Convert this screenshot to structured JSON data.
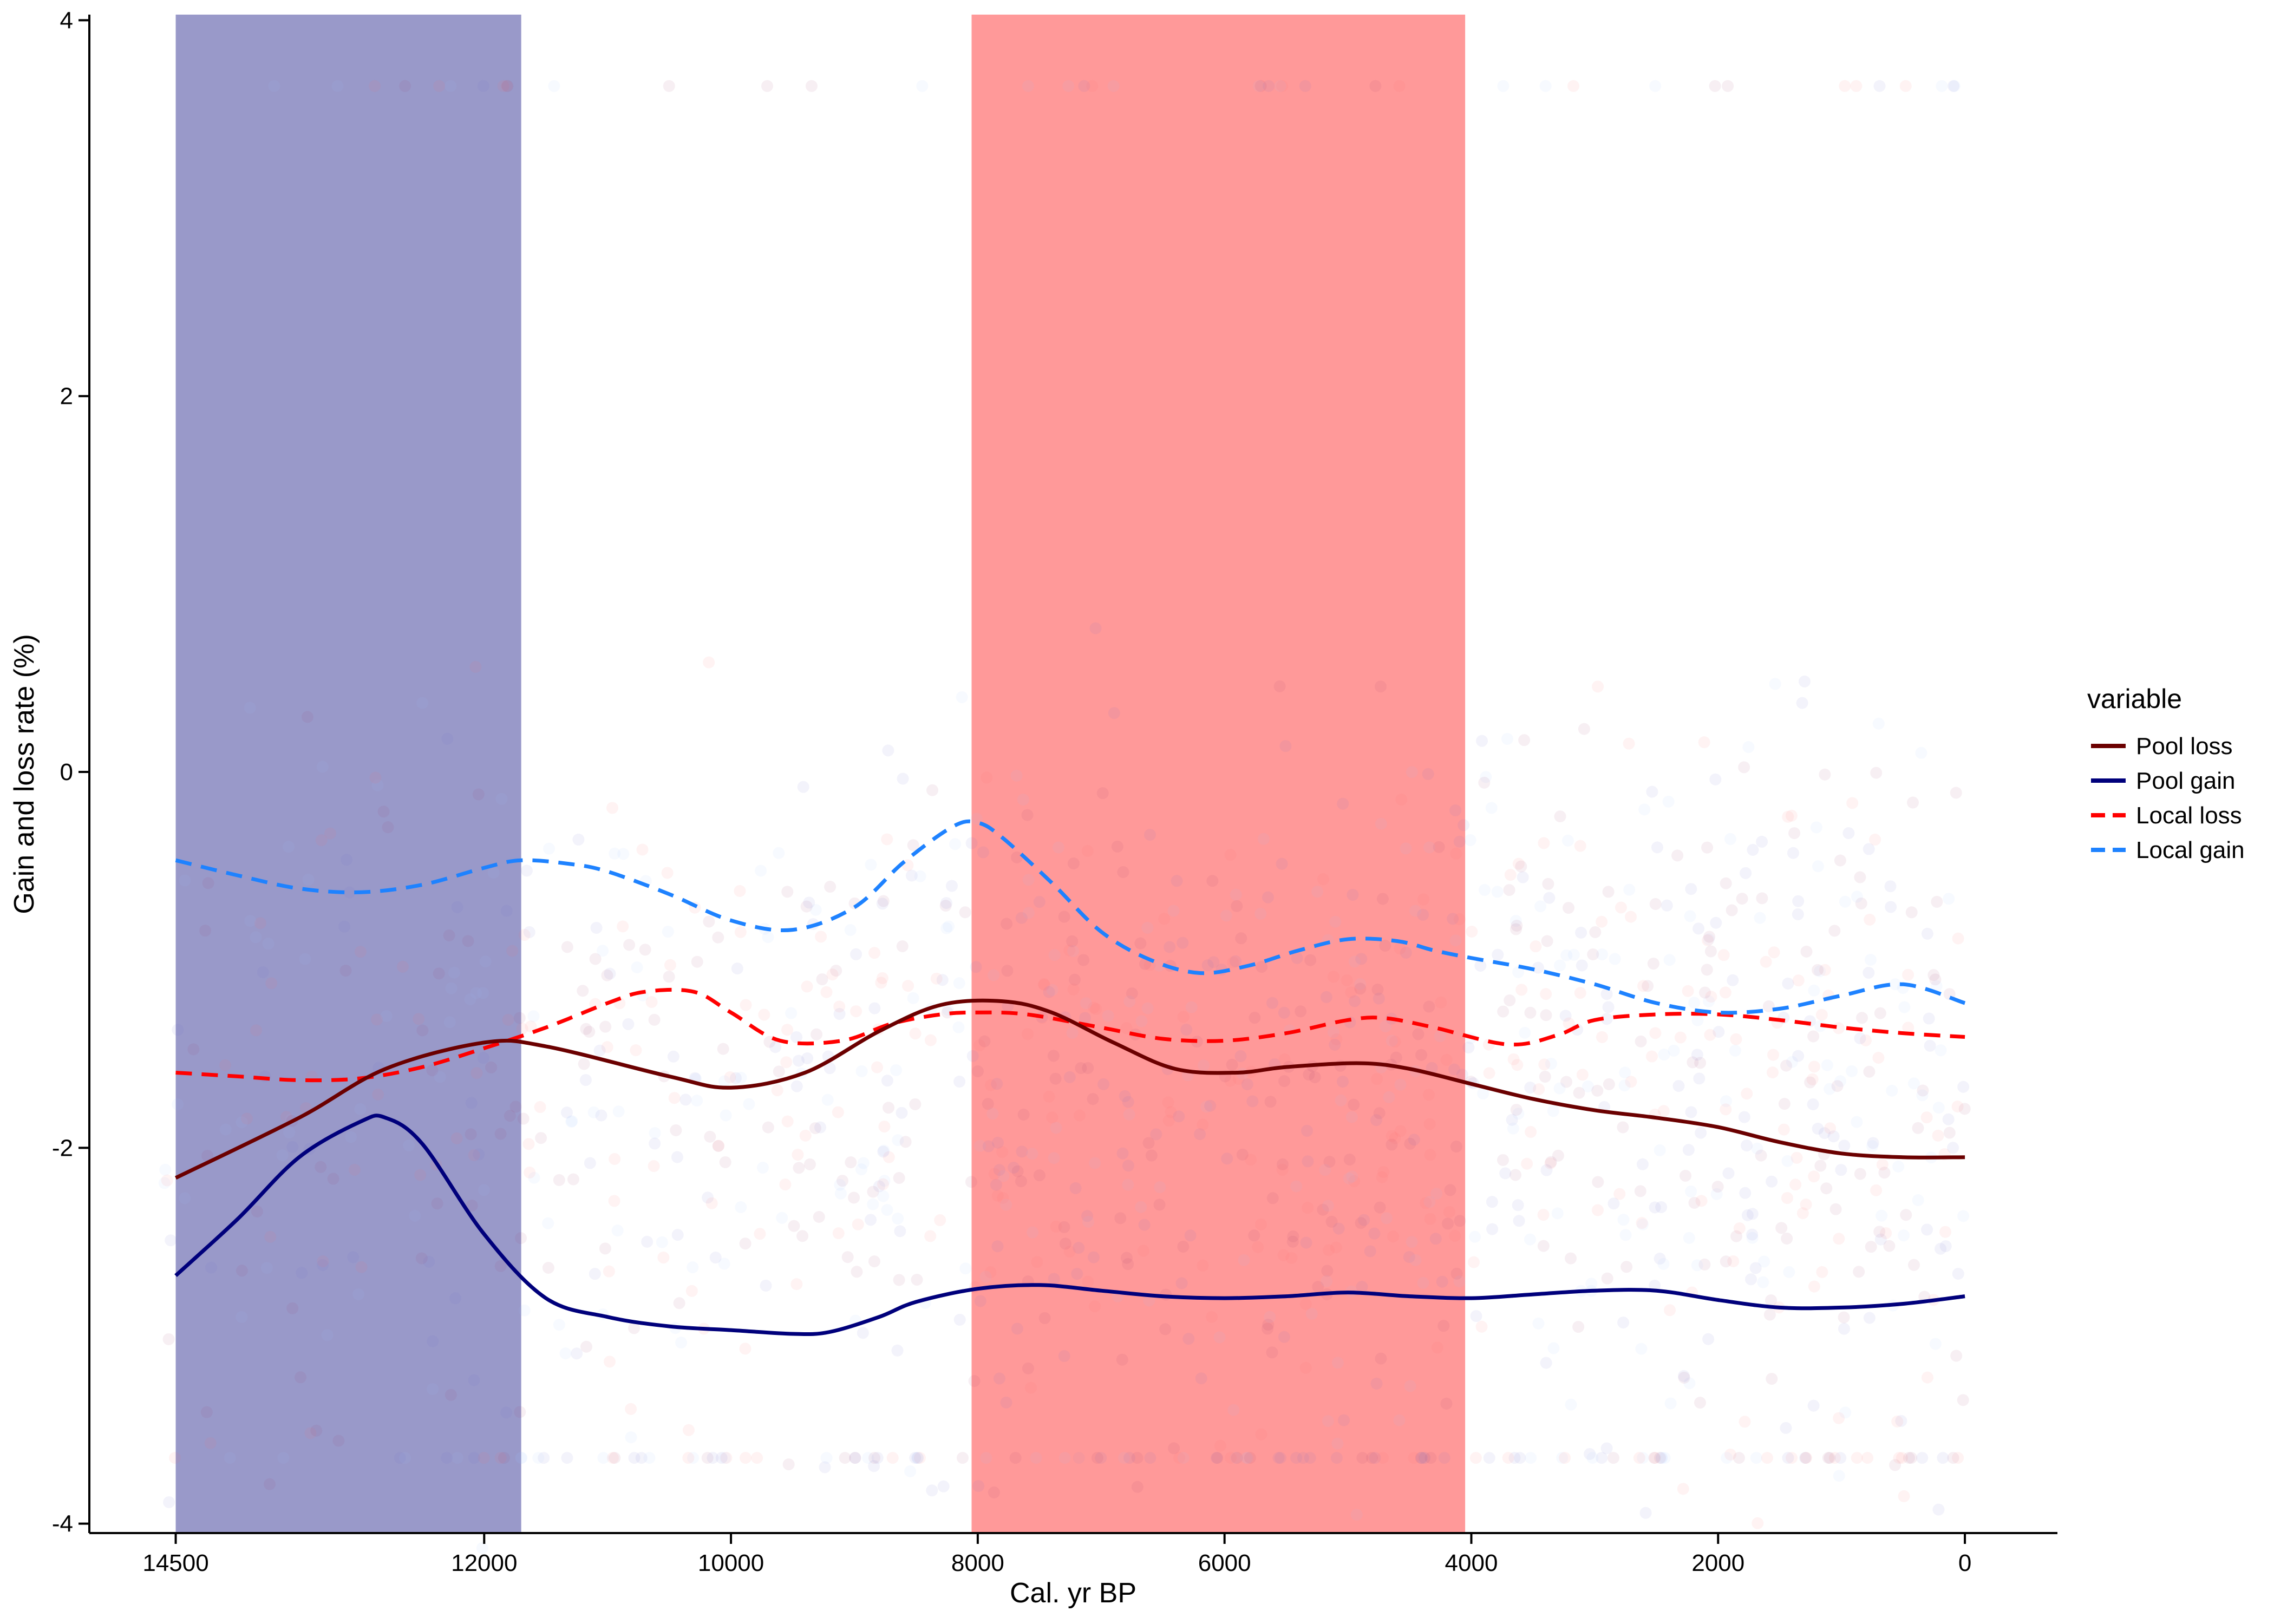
{
  "chart_data": {
    "type": "line",
    "xlabel": "Cal. yr BP",
    "ylabel": "Gain and loss rate (%)",
    "xlim": [
      15200,
      -750
    ],
    "ylim": [
      -4.05,
      4.03
    ],
    "x_reversed": true,
    "x_ticks": [
      14500,
      12000,
      10000,
      8000,
      6000,
      4000,
      2000,
      0
    ],
    "x_tick_labels": [
      "14500",
      "12000",
      "10000",
      "8000",
      "6000",
      "4000",
      "2000",
      "0"
    ],
    "y_ticks": [
      -4,
      -2,
      0,
      2,
      4
    ],
    "y_tick_labels": [
      "-4",
      "-2",
      "0",
      "2",
      "4"
    ],
    "grid": false,
    "shaded_periods": [
      {
        "x_start": 14500,
        "x_end": 11700,
        "color": "#9999c9"
      },
      {
        "x_start": 8050,
        "x_end": 4050,
        "color": "#ff9999"
      }
    ],
    "legend": {
      "title": "variable",
      "position": "right",
      "entries": [
        {
          "label": "Pool loss",
          "color": "#6b0000",
          "dash": "solid"
        },
        {
          "label": "Pool gain",
          "color": "#00007b",
          "dash": "solid"
        },
        {
          "label": "Local loss",
          "color": "#ff0000",
          "dash": "dashed"
        },
        {
          "label": "Local gain",
          "color": "#1e82ff",
          "dash": "dashed"
        }
      ]
    },
    "series": [
      {
        "name": "Pool loss",
        "color": "#6b0000",
        "dash": "solid",
        "x": [
          14500,
          13500,
          12800,
          12000,
          11500,
          10500,
          10000,
          9400,
          8800,
          8300,
          7800,
          7400,
          6900,
          6400,
          5900,
          5500,
          4900,
          4500,
          4000,
          3500,
          3000,
          2500,
          2000,
          1500,
          1000,
          500,
          0
        ],
        "y": [
          -2.16,
          -1.84,
          -1.58,
          -1.44,
          -1.46,
          -1.62,
          -1.68,
          -1.6,
          -1.38,
          -1.24,
          -1.22,
          -1.28,
          -1.44,
          -1.58,
          -1.6,
          -1.57,
          -1.55,
          -1.58,
          -1.66,
          -1.74,
          -1.8,
          -1.84,
          -1.89,
          -1.97,
          -2.03,
          -2.05,
          -2.05
        ]
      },
      {
        "name": "Pool gain",
        "color": "#00007b",
        "dash": "solid",
        "x": [
          14500,
          14000,
          13500,
          13000,
          12800,
          12500,
          12000,
          11500,
          11000,
          10500,
          10000,
          9500,
          9200,
          8800,
          8500,
          8000,
          7500,
          7000,
          6500,
          6000,
          5500,
          5000,
          4500,
          4000,
          3500,
          3000,
          2500,
          2000,
          1500,
          1000,
          500,
          0
        ],
        "y": [
          -2.68,
          -2.38,
          -2.05,
          -1.86,
          -1.84,
          -1.98,
          -2.46,
          -2.8,
          -2.9,
          -2.95,
          -2.97,
          -2.99,
          -2.98,
          -2.9,
          -2.82,
          -2.75,
          -2.73,
          -2.76,
          -2.79,
          -2.8,
          -2.79,
          -2.77,
          -2.79,
          -2.8,
          -2.78,
          -2.76,
          -2.76,
          -2.81,
          -2.85,
          -2.85,
          -2.83,
          -2.79
        ]
      },
      {
        "name": "Local loss",
        "color": "#ff0000",
        "dash": "dashed",
        "x": [
          14500,
          14000,
          13500,
          13000,
          12500,
          12000,
          11500,
          11000,
          10700,
          10300,
          10000,
          9600,
          9100,
          8700,
          8300,
          8000,
          7600,
          7000,
          6500,
          6000,
          5500,
          5000,
          4700,
          4300,
          3700,
          3300,
          3000,
          2500,
          2000,
          1500,
          1000,
          500,
          0
        ],
        "y": [
          -1.6,
          -1.62,
          -1.64,
          -1.63,
          -1.57,
          -1.47,
          -1.36,
          -1.23,
          -1.17,
          -1.17,
          -1.28,
          -1.43,
          -1.43,
          -1.34,
          -1.29,
          -1.28,
          -1.29,
          -1.36,
          -1.42,
          -1.43,
          -1.39,
          -1.32,
          -1.31,
          -1.36,
          -1.45,
          -1.4,
          -1.32,
          -1.29,
          -1.29,
          -1.32,
          -1.36,
          -1.39,
          -1.41
        ]
      },
      {
        "name": "Local gain",
        "color": "#1e82ff",
        "dash": "dashed",
        "x": [
          14500,
          14000,
          13500,
          13000,
          12500,
          12000,
          11700,
          11300,
          11000,
          10500,
          10000,
          9500,
          9000,
          8600,
          8200,
          8000,
          7800,
          7400,
          7000,
          6600,
          6200,
          5800,
          5400,
          5000,
          4600,
          4300,
          4000,
          3500,
          3000,
          2500,
          2000,
          1500,
          1000,
          500,
          0
        ],
        "y": [
          -0.47,
          -0.55,
          -0.62,
          -0.64,
          -0.6,
          -0.51,
          -0.47,
          -0.49,
          -0.53,
          -0.65,
          -0.79,
          -0.84,
          -0.72,
          -0.48,
          -0.29,
          -0.27,
          -0.35,
          -0.59,
          -0.85,
          -1.0,
          -1.07,
          -1.03,
          -0.95,
          -0.89,
          -0.9,
          -0.95,
          -0.99,
          -1.05,
          -1.13,
          -1.23,
          -1.28,
          -1.26,
          -1.19,
          -1.13,
          -1.23
        ]
      }
    ],
    "scatter": {
      "description_color_pool": [
        "#ff6666",
        "#6666cc",
        "#99bbff",
        "#993366"
      ],
      "opacity": 0.08
    }
  }
}
